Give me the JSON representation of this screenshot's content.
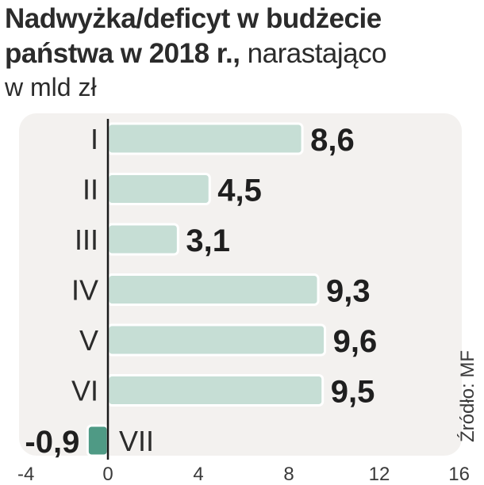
{
  "title": {
    "bold": "Nadwyżka/deficyt w budżecie",
    "bold2": "państwa w 2018 r.,",
    "light": " narastająco"
  },
  "subtitle": "w mld zł",
  "source": "Źródło: MF",
  "colors": {
    "bar_positive": "#c6ded5",
    "bar_negative": "#4f9a85",
    "panel": "#f3f1ef",
    "text": "#2b2b2b"
  },
  "chart_data": {
    "type": "bar",
    "orientation": "horizontal",
    "categories": [
      "I",
      "II",
      "III",
      "IV",
      "V",
      "VI",
      "VII"
    ],
    "values": [
      8.6,
      4.5,
      3.1,
      9.3,
      9.6,
      9.5,
      -0.9
    ],
    "value_labels": [
      "8,6",
      "4,5",
      "3,1",
      "9,3",
      "9,6",
      "9,5",
      "-0,9"
    ],
    "xlim": [
      -4,
      16
    ],
    "xticks": [
      "-4",
      "0",
      "4",
      "8",
      "12",
      "16"
    ],
    "xtick_values": [
      -4,
      0,
      4,
      8,
      12,
      16
    ],
    "grid": false
  }
}
